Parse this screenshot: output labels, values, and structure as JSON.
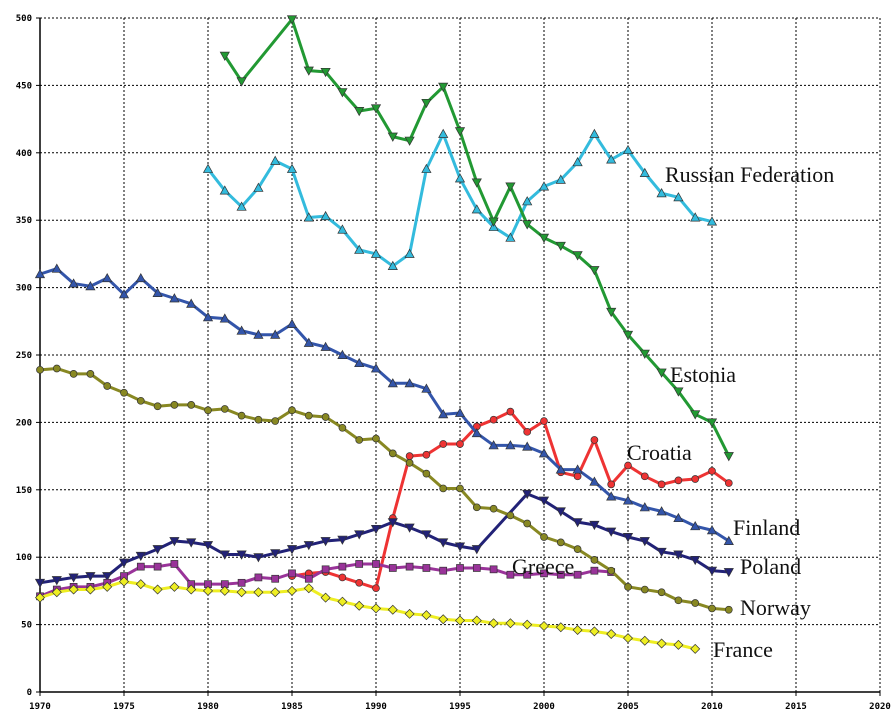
{
  "chart_data": {
    "type": "line",
    "grid": true,
    "xlim": [
      1970,
      2020
    ],
    "xticks": [
      1970,
      1975,
      1980,
      1985,
      1990,
      1995,
      2000,
      2005,
      2010,
      2015,
      2020
    ],
    "ylim": [
      0,
      500
    ],
    "yticks": [
      0,
      50,
      100,
      150,
      200,
      250,
      300,
      350,
      400,
      450,
      500
    ],
    "series": [
      {
        "name": "Russian Federation",
        "color": "#33bbdd",
        "marker": "triangle-up",
        "x": [
          1980,
          1981,
          1982,
          1983,
          1984,
          1985,
          1986,
          1987,
          1988,
          1989,
          1990,
          1991,
          1992,
          1993,
          1994,
          1995,
          1996,
          1997,
          1998,
          1999,
          2000,
          2001,
          2002,
          2003,
          2004,
          2005,
          2006,
          2007,
          2008,
          2009,
          2010
        ],
        "values": [
          388,
          372,
          360,
          374,
          394,
          388,
          352,
          353,
          343,
          328,
          325,
          316,
          325,
          388,
          414,
          381,
          358,
          345,
          337,
          364,
          375,
          380,
          393,
          414,
          395,
          402,
          385,
          370,
          367,
          352,
          349
        ]
      },
      {
        "name": "Estonia",
        "color": "#229933",
        "marker": "triangle-down",
        "x": [
          1981,
          1982,
          1985,
          1986,
          1987,
          1988,
          1989,
          1990,
          1991,
          1992,
          1993,
          1994,
          1995,
          1996,
          1997,
          1998,
          1999,
          2000,
          2001,
          2002,
          2003,
          2004,
          2005,
          2006,
          2007,
          2008,
          2009,
          2010,
          2011
        ],
        "values": [
          472,
          453,
          499,
          461,
          460,
          445,
          431,
          433,
          412,
          409,
          437,
          449,
          416,
          378,
          349,
          375,
          347,
          337,
          331,
          324,
          313,
          282,
          265,
          251,
          237,
          223,
          206,
          200,
          175
        ]
      },
      {
        "name": "Croatia",
        "color": "#ee3333",
        "marker": "circle",
        "x": [
          1985,
          1986,
          1987,
          1988,
          1989,
          1990,
          1991,
          1992,
          1993,
          1994,
          1995,
          1996,
          1997,
          1998,
          1999,
          2000,
          2001,
          2002,
          2003,
          2004,
          2005,
          2006,
          2007,
          2008,
          2009,
          2010,
          2011
        ],
        "values": [
          86,
          88,
          89,
          85,
          81,
          77,
          129,
          175,
          176,
          184,
          184,
          197,
          202,
          208,
          193,
          201,
          163,
          160,
          187,
          154,
          168,
          160,
          154,
          157,
          158,
          164,
          155
        ]
      },
      {
        "name": "Finland",
        "color": "#3355aa",
        "marker": "triangle-up",
        "x": [
          1970,
          1971,
          1972,
          1973,
          1974,
          1975,
          1976,
          1977,
          1978,
          1979,
          1980,
          1981,
          1982,
          1983,
          1984,
          1985,
          1986,
          1987,
          1988,
          1989,
          1990,
          1991,
          1992,
          1993,
          1994,
          1995,
          1996,
          1997,
          1998,
          1999,
          2000,
          2001,
          2002,
          2003,
          2004,
          2005,
          2006,
          2007,
          2008,
          2009,
          2010,
          2011
        ],
        "values": [
          310,
          314,
          303,
          301,
          307,
          295,
          307,
          296,
          292,
          288,
          278,
          277,
          268,
          265,
          265,
          273,
          259,
          256,
          250,
          244,
          240,
          229,
          229,
          225,
          206,
          207,
          192,
          183,
          183,
          182,
          177,
          165,
          165,
          156,
          145,
          142,
          137,
          134,
          129,
          123,
          120,
          112
        ]
      },
      {
        "name": "Poland",
        "color": "#222277",
        "marker": "triangle-down",
        "x": [
          1970,
          1971,
          1972,
          1973,
          1974,
          1975,
          1976,
          1977,
          1978,
          1979,
          1980,
          1981,
          1982,
          1983,
          1984,
          1985,
          1986,
          1987,
          1988,
          1989,
          1990,
          1991,
          1992,
          1993,
          1994,
          1995,
          1996,
          1999,
          2000,
          2001,
          2002,
          2003,
          2004,
          2005,
          2006,
          2007,
          2008,
          2009,
          2010,
          2011
        ],
        "values": [
          81,
          83,
          85,
          86,
          86,
          96,
          101,
          106,
          112,
          111,
          109,
          102,
          102,
          100,
          103,
          106,
          109,
          112,
          113,
          117,
          121,
          126,
          122,
          117,
          111,
          108,
          106,
          147,
          142,
          134,
          126,
          124,
          119,
          115,
          112,
          104,
          102,
          98,
          90,
          89
        ]
      },
      {
        "name": "Greece",
        "color": "#993399",
        "marker": "square",
        "x": [
          1970,
          1971,
          1972,
          1973,
          1974,
          1975,
          1976,
          1977,
          1978,
          1979,
          1980,
          1981,
          1982,
          1983,
          1984,
          1985,
          1986,
          1987,
          1988,
          1989,
          1990,
          1991,
          1992,
          1993,
          1994,
          1995,
          1996,
          1997,
          1998,
          1999,
          2000,
          2001,
          2002,
          2003,
          2004
        ],
        "values": [
          71,
          76,
          78,
          78,
          81,
          86,
          93,
          93,
          95,
          80,
          80,
          80,
          81,
          85,
          84,
          88,
          84,
          91,
          93,
          95,
          95,
          92,
          93,
          92,
          90,
          92,
          92,
          91,
          87,
          87,
          88,
          87,
          87,
          90,
          89
        ]
      },
      {
        "name": "Norway",
        "color": "#888822",
        "marker": "circle",
        "x": [
          1970,
          1971,
          1972,
          1973,
          1974,
          1975,
          1976,
          1977,
          1978,
          1979,
          1980,
          1981,
          1982,
          1983,
          1984,
          1985,
          1986,
          1987,
          1988,
          1989,
          1990,
          1991,
          1992,
          1993,
          1994,
          1995,
          1996,
          1997,
          1998,
          1999,
          2000,
          2001,
          2002,
          2003,
          2004,
          2005,
          2006,
          2007,
          2008,
          2009,
          2010,
          2011
        ],
        "values": [
          239,
          240,
          236,
          236,
          227,
          222,
          216,
          212,
          213,
          213,
          209,
          210,
          205,
          202,
          201,
          209,
          205,
          204,
          196,
          187,
          188,
          177,
          170,
          162,
          151,
          151,
          137,
          136,
          131,
          125,
          115,
          111,
          106,
          98,
          90,
          78,
          76,
          74,
          68,
          66,
          62,
          61
        ]
      },
      {
        "name": "France",
        "color": "#eeee22",
        "marker": "diamond",
        "x": [
          1970,
          1971,
          1972,
          1973,
          1974,
          1975,
          1976,
          1977,
          1978,
          1979,
          1980,
          1981,
          1982,
          1983,
          1984,
          1985,
          1986,
          1987,
          1988,
          1989,
          1990,
          1991,
          1992,
          1993,
          1994,
          1995,
          1996,
          1997,
          1998,
          1999,
          2000,
          2001,
          2002,
          2003,
          2004,
          2005,
          2006,
          2007,
          2008,
          2009
        ],
        "values": [
          70,
          74,
          76,
          76,
          78,
          82,
          80,
          76,
          78,
          76,
          75,
          75,
          74,
          74,
          74,
          75,
          77,
          70,
          67,
          64,
          62,
          61,
          58,
          57,
          54,
          53,
          53,
          51,
          51,
          50,
          49,
          48,
          46,
          45,
          43,
          40,
          38,
          36,
          35,
          32
        ]
      }
    ]
  }
}
